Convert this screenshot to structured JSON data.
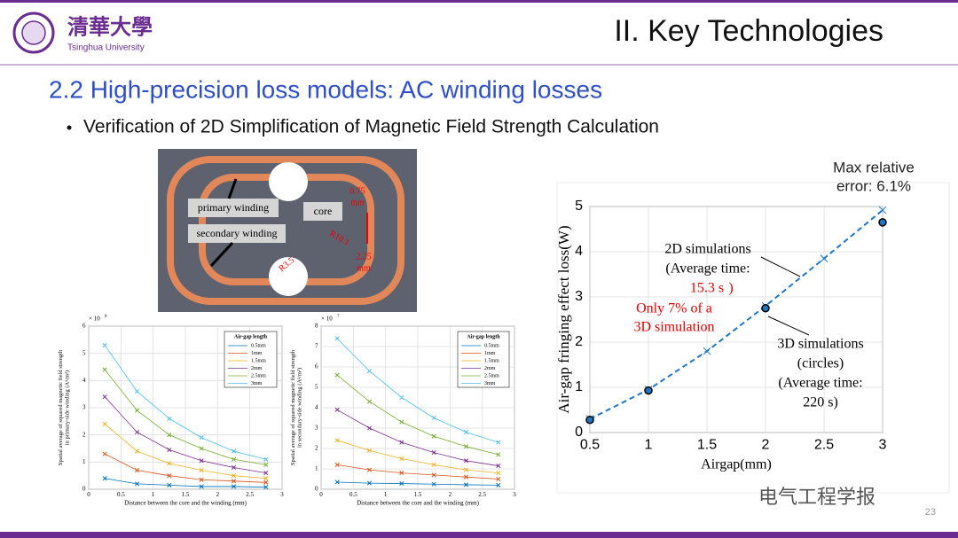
{
  "header": {
    "logo_text": "清華大學",
    "logo_sub": "Tsinghua University",
    "section": "II. Key Technologies"
  },
  "subtitle": "2.2 High-precision loss models: AC winding losses",
  "bullet": "Verification of 2D Simplification of Magnetic Field Strength Calculation",
  "diagram": {
    "primary": "primary winding",
    "secondary": "secondary winding",
    "core": "core",
    "gap": [
      "0.75",
      "mm"
    ],
    "r1": "R10.1",
    "thick": [
      "2.25",
      "mm"
    ],
    "r2": "R3.5"
  },
  "chart_data": [
    {
      "type": "line",
      "multiplier": {
        "base": "× 10",
        "exponent": "8"
      },
      "ylabel": [
        "Spatial average of squared magnetic field strength",
        "in primary-side winding (A²/m²)"
      ],
      "xlabel": "Distance between the core and the winding (mm)",
      "legend_title": "Air-gap length",
      "legend": "upper right",
      "grid": true,
      "x": [
        0.25,
        0.75,
        1.25,
        1.75,
        2.25,
        2.75
      ],
      "xlim": [
        0,
        3
      ],
      "ylim": [
        0,
        6
      ],
      "xticks": [
        0,
        0.5,
        1,
        1.5,
        2,
        2.5,
        3
      ],
      "yticks": [
        0,
        1,
        2,
        3,
        4,
        5,
        6
      ],
      "series": [
        {
          "name": "0.5mm",
          "color": "#0072bd",
          "marker": "x",
          "values": [
            0.4,
            0.2,
            0.15,
            0.1,
            0.1,
            0.08
          ]
        },
        {
          "name": "1mm",
          "color": "#d95319",
          "marker": "x",
          "values": [
            1.3,
            0.7,
            0.5,
            0.35,
            0.3,
            0.25
          ]
        },
        {
          "name": "1.5mm",
          "color": "#edb120",
          "marker": "x",
          "values": [
            2.4,
            1.4,
            0.95,
            0.7,
            0.5,
            0.4
          ]
        },
        {
          "name": "2mm",
          "color": "#7e2f8e",
          "marker": "x",
          "values": [
            3.4,
            2.1,
            1.45,
            1.05,
            0.8,
            0.6
          ]
        },
        {
          "name": "2.5mm",
          "color": "#77ac30",
          "marker": "x",
          "values": [
            4.4,
            2.9,
            2.0,
            1.5,
            1.1,
            0.9
          ]
        },
        {
          "name": "3mm",
          "color": "#4dbeee",
          "marker": "x",
          "values": [
            5.3,
            3.6,
            2.6,
            1.9,
            1.4,
            1.1
          ]
        }
      ]
    },
    {
      "type": "line",
      "multiplier": {
        "base": "× 10",
        "exponent": "7"
      },
      "ylabel": [
        "Spatial average of squared magnetic field strength",
        "in secondary-side winding (A²/m²)"
      ],
      "xlabel": "Distance between the core and the winding (mm)",
      "legend_title": "Air-gap length",
      "legend": "upper right",
      "grid": true,
      "x": [
        0.25,
        0.75,
        1.25,
        1.75,
        2.25,
        2.75
      ],
      "xlim": [
        0,
        3
      ],
      "ylim": [
        0,
        8
      ],
      "xticks": [
        0,
        0.5,
        1,
        1.5,
        2,
        2.5,
        3
      ],
      "yticks": [
        0,
        1,
        2,
        3,
        4,
        5,
        6,
        7,
        8
      ],
      "series": [
        {
          "name": "0.5mm",
          "color": "#0072bd",
          "marker": "x",
          "values": [
            0.35,
            0.3,
            0.28,
            0.25,
            0.22,
            0.2
          ]
        },
        {
          "name": "1mm",
          "color": "#d95319",
          "marker": "x",
          "values": [
            1.2,
            0.95,
            0.8,
            0.7,
            0.6,
            0.5
          ]
        },
        {
          "name": "1.5mm",
          "color": "#edb120",
          "marker": "x",
          "values": [
            2.4,
            1.9,
            1.5,
            1.2,
            0.95,
            0.8
          ]
        },
        {
          "name": "2mm",
          "color": "#7e2f8e",
          "marker": "x",
          "values": [
            3.9,
            3.0,
            2.3,
            1.8,
            1.4,
            1.15
          ]
        },
        {
          "name": "2.5mm",
          "color": "#77ac30",
          "marker": "x",
          "values": [
            5.6,
            4.3,
            3.3,
            2.6,
            2.1,
            1.7
          ]
        },
        {
          "name": "3mm",
          "color": "#4dbeee",
          "marker": "x",
          "values": [
            7.4,
            5.8,
            4.5,
            3.5,
            2.8,
            2.3
          ]
        }
      ]
    },
    {
      "type": "line",
      "ylabel": [
        "Air-gap fringing effect loss(W)"
      ],
      "xlabel": "Airgap(mm)",
      "grid": true,
      "x": [
        0.5,
        1,
        1.5,
        2,
        2.5,
        3
      ],
      "xlim": [
        0.5,
        3
      ],
      "ylim": [
        0,
        5
      ],
      "xticks": [
        0.5,
        1,
        1.5,
        2,
        2.5,
        3
      ],
      "yticks": [
        0,
        1,
        2,
        3,
        4,
        5
      ],
      "series": [
        {
          "color": "#1f77c4",
          "marker": "x",
          "dashed": true,
          "values": [
            0.3,
            0.95,
            1.8,
            2.8,
            3.85,
            4.92
          ]
        },
        {
          "color": "#000000",
          "marker": "o",
          "fill": "#1f77c4",
          "dashed": false,
          "values": [
            0.28,
            0.93,
            null,
            2.75,
            null,
            4.65
          ]
        }
      ],
      "annotations": [
        {
          "lines": [
            "Max relative",
            "error: 6.1%"
          ],
          "color": "#222222"
        },
        {
          "lines": [
            "2D simulations",
            "(Average time:"
          ],
          "color": "#000000"
        },
        {
          "lines": [
            "15.3 s",
            ")"
          ],
          "color": "#e00000"
        },
        {
          "lines": [
            "Only 7% of a",
            "3D simulation"
          ],
          "color": "#e00000"
        },
        {
          "lines": [
            "3D simulations",
            "(circles)",
            "(Average time:",
            "220 s)"
          ],
          "color": "#000000"
        }
      ]
    }
  ],
  "footer": {
    "brand": "电气工程学报",
    "page": "23"
  }
}
